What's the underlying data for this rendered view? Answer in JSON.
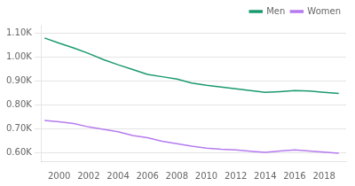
{
  "chart_data": {
    "type": "line",
    "x": [
      1999,
      2000,
      2001,
      2002,
      2003,
      2004,
      2005,
      2006,
      2007,
      2008,
      2009,
      2010,
      2011,
      2012,
      2013,
      2014,
      2015,
      2016,
      2017,
      2018,
      2019
    ],
    "series": [
      {
        "name": "Men",
        "color": "#1a9a6c",
        "values": [
          1080,
          1058,
          1038,
          1015,
          990,
          968,
          948,
          928,
          918,
          908,
          892,
          882,
          875,
          868,
          860,
          853,
          856,
          860,
          858,
          853,
          848
        ]
      },
      {
        "name": "Women",
        "color": "#b57bee",
        "values": [
          735,
          730,
          722,
          708,
          698,
          688,
          672,
          663,
          648,
          638,
          628,
          620,
          615,
          612,
          607,
          602,
          608,
          612,
          608,
          603,
          598
        ]
      }
    ],
    "xlim": [
      1998.8,
      2019.5
    ],
    "xticks": [
      2000,
      2002,
      2004,
      2006,
      2008,
      2010,
      2012,
      2014,
      2016,
      2018
    ],
    "ylim": [
      565,
      1135
    ],
    "yticks": [
      {
        "value": 600,
        "label": "0.60K"
      },
      {
        "value": 700,
        "label": "0.70K"
      },
      {
        "value": 800,
        "label": "0.80K"
      },
      {
        "value": 900,
        "label": "0.90K"
      },
      {
        "value": 1000,
        "label": "1.00K"
      },
      {
        "value": 1100,
        "label": "1.10K"
      }
    ],
    "grid": "y",
    "legend": "upper right"
  }
}
